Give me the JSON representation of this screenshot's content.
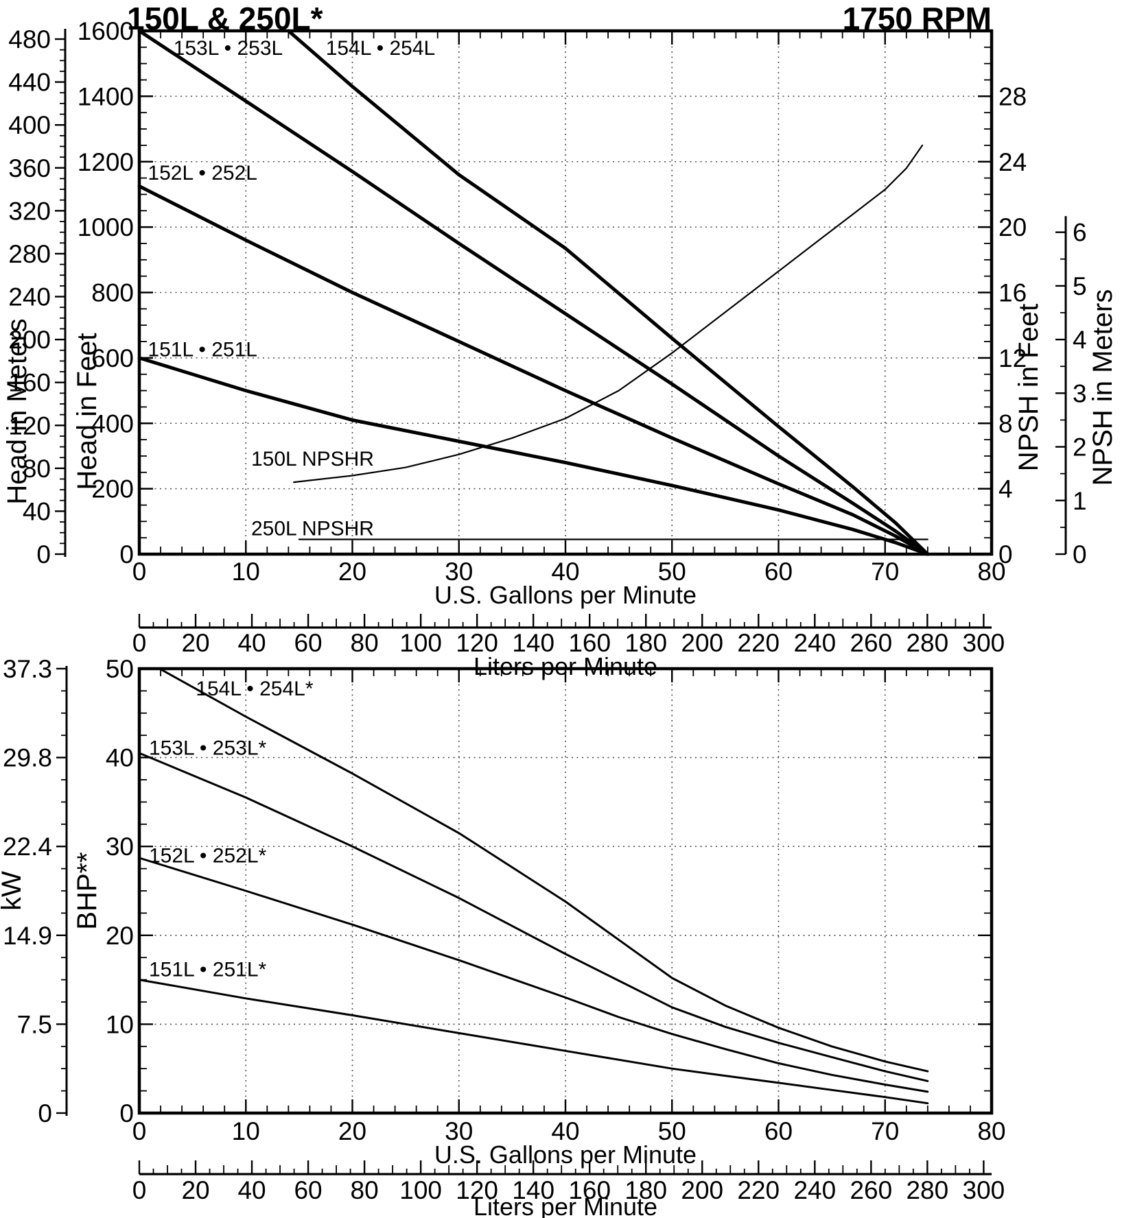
{
  "header": {
    "model_title": "150L & 250L*",
    "rpm_title": "1750 RPM"
  },
  "colors": {
    "ink": "#000000",
    "grid": "#4a4a4a",
    "background": "#ffffff"
  },
  "chart_data": [
    {
      "id": "head-npsh-chart",
      "type": "line",
      "x_axis": {
        "label": "U.S. Gallons per Minute",
        "min": 0,
        "max": 80,
        "major_tick_step": 10,
        "minor_tick_step": 2,
        "tick_labels": [
          0,
          10,
          20,
          30,
          40,
          50,
          60,
          70,
          80
        ]
      },
      "x_axis_liters": {
        "label": "Liters per Minute",
        "min": 0,
        "max": 300,
        "major_tick_step": 20,
        "medium_tick_step": 10,
        "minor_tick_step": 5,
        "tick_labels": [
          0,
          20,
          40,
          60,
          80,
          100,
          120,
          140,
          160,
          180,
          200,
          220,
          240,
          260,
          280,
          300
        ]
      },
      "y_axis_head_feet": {
        "label": "Head in Feet",
        "min": 0,
        "max": 1600,
        "major_tick_step": 200,
        "minor_tick_step": 50,
        "tick_labels": [
          0,
          200,
          400,
          600,
          800,
          1000,
          1200,
          1400,
          1600
        ]
      },
      "y_axis_head_meters": {
        "label": "Head in Meters",
        "min": 0,
        "max": 480,
        "major_tick_step": 40,
        "minor_tick_step": 10,
        "tick_labels": [
          0,
          40,
          80,
          120,
          160,
          200,
          240,
          280,
          320,
          360,
          400,
          440,
          480
        ]
      },
      "y_axis_npsh_feet": {
        "label": "NPSH in Feet",
        "min": 0,
        "max": 32,
        "major_tick_step": 4,
        "minor_tick_step": 1,
        "tick_labels": [
          0,
          4,
          8,
          12,
          16,
          20,
          24,
          28
        ]
      },
      "y_axis_npsh_meters": {
        "label": "NPSH in Meters",
        "min": 0,
        "max": 6.3,
        "major_tick_step": 1,
        "minor_tick_step": 0.5,
        "tick_labels": [
          0,
          1,
          2,
          3,
          4,
          5,
          6
        ]
      },
      "grid": {
        "x_lines_gpm": [
          10,
          20,
          30,
          40,
          50,
          60,
          70
        ],
        "y_lines_feet": [
          200,
          400,
          600,
          800,
          1000,
          1200,
          1400
        ]
      },
      "series": [
        {
          "name": "153L • 253L",
          "unit": "feet",
          "stroke_width": 5,
          "points": [
            [
              0,
              1600
            ],
            [
              10,
              1385
            ],
            [
              20,
              1170
            ],
            [
              30,
              950
            ],
            [
              40,
              735
            ],
            [
              50,
              520
            ],
            [
              60,
              300
            ],
            [
              67,
              155
            ],
            [
              71,
              70
            ],
            [
              74,
              0
            ]
          ]
        },
        {
          "name": "154L • 254L",
          "unit": "feet",
          "stroke_width": 5,
          "points": [
            [
              14,
              1600
            ],
            [
              20,
              1430
            ],
            [
              30,
              1160
            ],
            [
              40,
              935
            ],
            [
              50,
              660
            ],
            [
              60,
              390
            ],
            [
              67,
              205
            ],
            [
              71,
              95
            ],
            [
              74,
              0
            ]
          ]
        },
        {
          "name": "152L • 252L",
          "unit": "feet",
          "stroke_width": 5,
          "points": [
            [
              0,
              1125
            ],
            [
              10,
              960
            ],
            [
              20,
              800
            ],
            [
              30,
              650
            ],
            [
              40,
              500
            ],
            [
              50,
              355
            ],
            [
              60,
              215
            ],
            [
              67,
              120
            ],
            [
              71,
              55
            ],
            [
              74,
              0
            ]
          ]
        },
        {
          "name": "151L • 251L",
          "unit": "feet",
          "stroke_width": 5,
          "points": [
            [
              0,
              600
            ],
            [
              10,
              500
            ],
            [
              20,
              410
            ],
            [
              30,
              345
            ],
            [
              40,
              280
            ],
            [
              50,
              210
            ],
            [
              60,
              135
            ],
            [
              67,
              75
            ],
            [
              71,
              35
            ],
            [
              74,
              0
            ]
          ]
        },
        {
          "name": "150L NPSHR",
          "unit": "npsh_feet",
          "stroke_width": 2.2,
          "points": [
            [
              14.5,
              4.4
            ],
            [
              20,
              4.8
            ],
            [
              25,
              5.3
            ],
            [
              30,
              6.1
            ],
            [
              35,
              7.1
            ],
            [
              40,
              8.3
            ],
            [
              45,
              10.0
            ],
            [
              50,
              12.3
            ],
            [
              55,
              14.8
            ],
            [
              60,
              17.3
            ],
            [
              64,
              19.3
            ],
            [
              67,
              20.8
            ],
            [
              70,
              22.3
            ],
            [
              72,
              23.6
            ],
            [
              73.5,
              25.0
            ]
          ]
        },
        {
          "name": "250L NPSHR",
          "unit": "npsh_feet",
          "stroke_width": 2.2,
          "points": [
            [
              15,
              0.9
            ],
            [
              74,
              0.9
            ]
          ]
        }
      ],
      "curve_labels": [
        {
          "text": "153L • 253L",
          "gpm": 3.2,
          "value": 1527,
          "unit": "feet"
        },
        {
          "text": "154L • 254L",
          "gpm": 17.5,
          "value": 1527,
          "unit": "feet"
        },
        {
          "text": "152L • 252L",
          "gpm": 0.8,
          "value": 1145,
          "unit": "feet"
        },
        {
          "text": "151L • 251L",
          "gpm": 0.8,
          "value": 605,
          "unit": "feet"
        },
        {
          "text": "150L NPSHR",
          "gpm": 10.5,
          "value": 5.4,
          "unit": "npsh_feet"
        },
        {
          "text": "250L NPSHR",
          "gpm": 10.5,
          "value": 1.15,
          "unit": "npsh_feet"
        }
      ]
    },
    {
      "id": "bhp-chart",
      "type": "line",
      "x_axis": {
        "label": "U.S. Gallons per Minute",
        "min": 0,
        "max": 80,
        "major_tick_step": 10,
        "minor_tick_step": 2,
        "tick_labels": [
          0,
          10,
          20,
          30,
          40,
          50,
          60,
          70,
          80
        ]
      },
      "x_axis_liters": {
        "label": "Liters per Minute",
        "min": 0,
        "max": 300,
        "major_tick_step": 20,
        "medium_tick_step": 10,
        "minor_tick_step": 5,
        "tick_labels": [
          0,
          20,
          40,
          60,
          80,
          100,
          120,
          140,
          160,
          180,
          200,
          220,
          240,
          260,
          280,
          300
        ]
      },
      "y_axis_bhp": {
        "label": "BHP**",
        "min": 0,
        "max": 50,
        "major_tick_step": 10,
        "minor_tick_step": 2.5,
        "tick_labels": [
          0,
          10,
          20,
          30,
          40,
          50
        ]
      },
      "y_axis_kw": {
        "label": "kW",
        "tick_labels": [
          "0",
          "7.5",
          "14.9",
          "22.4",
          "29.8",
          "37.3"
        ],
        "at_bhp": [
          0,
          10,
          20,
          30,
          40,
          50
        ],
        "minor_step_bhp": 2.5
      },
      "grid": {
        "x_lines_gpm": [
          10,
          20,
          30,
          40,
          50,
          60,
          70
        ],
        "y_lines_bhp": [
          10,
          20,
          30,
          40
        ]
      },
      "series": [
        {
          "name": "154L • 254L*",
          "unit": "bhp",
          "stroke_width": 3,
          "points": [
            [
              1.9,
              50
            ],
            [
              10,
              44.6
            ],
            [
              20,
              38.2
            ],
            [
              30,
              31.5
            ],
            [
              40,
              23.8
            ],
            [
              45,
              19.5
            ],
            [
              50,
              15.2
            ],
            [
              55,
              12.1
            ],
            [
              60,
              9.6
            ],
            [
              65,
              7.5
            ],
            [
              70,
              5.8
            ],
            [
              74,
              4.7
            ]
          ]
        },
        {
          "name": "153L • 253L*",
          "unit": "bhp",
          "stroke_width": 3,
          "points": [
            [
              0,
              40.5
            ],
            [
              10,
              35.5
            ],
            [
              20,
              30.0
            ],
            [
              30,
              24.2
            ],
            [
              40,
              17.9
            ],
            [
              45,
              14.9
            ],
            [
              50,
              11.9
            ],
            [
              55,
              9.7
            ],
            [
              60,
              7.9
            ],
            [
              65,
              6.3
            ],
            [
              70,
              4.7
            ],
            [
              74,
              3.6
            ]
          ]
        },
        {
          "name": "152L • 252L*",
          "unit": "bhp",
          "stroke_width": 3,
          "points": [
            [
              0,
              28.7
            ],
            [
              10,
              25.0
            ],
            [
              20,
              21.2
            ],
            [
              30,
              17.2
            ],
            [
              40,
              13.0
            ],
            [
              45,
              10.8
            ],
            [
              50,
              8.9
            ],
            [
              55,
              7.2
            ],
            [
              60,
              5.6
            ],
            [
              65,
              4.3
            ],
            [
              70,
              3.2
            ],
            [
              74,
              2.4
            ]
          ]
        },
        {
          "name": "151L • 251L*",
          "unit": "bhp",
          "stroke_width": 3,
          "points": [
            [
              0,
              15.0
            ],
            [
              10,
              12.9
            ],
            [
              20,
              11.0
            ],
            [
              30,
              9.0
            ],
            [
              40,
              7.0
            ],
            [
              50,
              5.0
            ],
            [
              55,
              4.2
            ],
            [
              60,
              3.4
            ],
            [
              65,
              2.6
            ],
            [
              70,
              1.8
            ],
            [
              74,
              1.1
            ]
          ]
        }
      ],
      "curve_labels": [
        {
          "text": "154L • 254L*",
          "gpm": 5.3,
          "value": 47.0,
          "unit": "bhp"
        },
        {
          "text": "153L • 253L*",
          "gpm": 0.9,
          "value": 40.3,
          "unit": "bhp"
        },
        {
          "text": "152L • 252L*",
          "gpm": 0.9,
          "value": 28.2,
          "unit": "bhp"
        },
        {
          "text": "151L • 251L*",
          "gpm": 0.9,
          "value": 15.4,
          "unit": "bhp"
        }
      ]
    }
  ]
}
